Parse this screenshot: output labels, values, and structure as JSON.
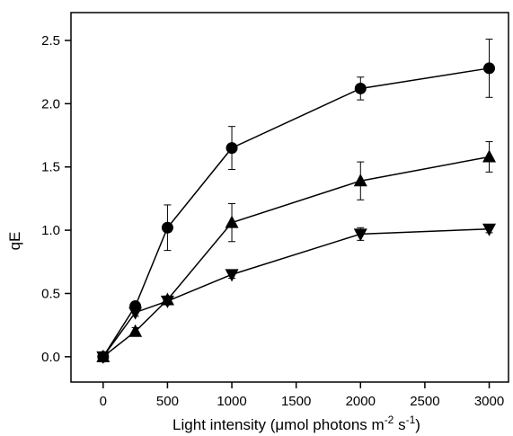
{
  "chart_data": {
    "type": "line",
    "xlabel": "Light intensity (μmol photons m⁻² s⁻¹)",
    "xlabel_parts": {
      "main": "Light intensity (μmol photons m",
      "exp1": "-2",
      "mid": " s",
      "exp2": "-1",
      "end": ")"
    },
    "ylabel": "qE",
    "xlim": [
      -250,
      3150
    ],
    "ylim": [
      -0.2,
      2.72
    ],
    "xticks": [
      0,
      500,
      1000,
      1500,
      2000,
      2500,
      3000
    ],
    "yticks": [
      0.0,
      0.5,
      1.0,
      1.5,
      2.0,
      2.5
    ],
    "xtick_labels": [
      "0",
      "500",
      "1000",
      "1500",
      "2000",
      "2500",
      "3000"
    ],
    "ytick_labels": [
      "0.0",
      "0.5",
      "1.0",
      "1.5",
      "2.0",
      "2.5"
    ],
    "x": [
      0,
      250,
      500,
      1000,
      2000,
      3000
    ],
    "grid": false,
    "legend": "none",
    "series": [
      {
        "marker": "circle",
        "values": [
          0.0,
          0.4,
          1.02,
          1.65,
          2.12,
          2.28
        ],
        "errors": [
          0.0,
          0.03,
          0.18,
          0.17,
          0.09,
          0.23
        ]
      },
      {
        "marker": "triangle-up",
        "values": [
          0.0,
          0.2,
          0.45,
          1.06,
          1.39,
          1.58
        ],
        "errors": [
          0.0,
          0.03,
          0.03,
          0.15,
          0.15,
          0.12
        ]
      },
      {
        "marker": "triangle-down",
        "values": [
          0.0,
          0.35,
          0.44,
          0.65,
          0.97,
          1.01
        ],
        "errors": [
          0.0,
          0.03,
          0.03,
          0.03,
          0.05,
          0.03
        ]
      }
    ],
    "colors": {
      "line": "#000000",
      "marker": "#000000"
    }
  }
}
